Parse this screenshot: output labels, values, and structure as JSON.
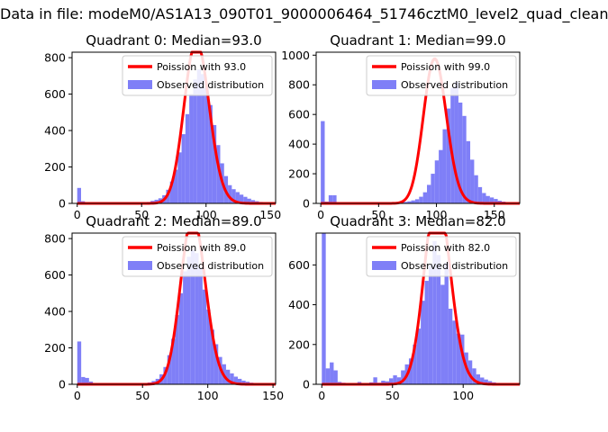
{
  "figure": {
    "suptitle": "Data in file: modeM0/AS1A13_090T01_9000006464_51746cztM0_level2_quad_clean"
  },
  "colors": {
    "observed": "#7f7ff7",
    "poisson": "#ff0000"
  },
  "chart_data": [
    {
      "type": "bar",
      "title": "Quadrant 0: Median=93.0",
      "median": 93.0,
      "xlim": [
        -4,
        154
      ],
      "ylim": [
        0,
        830
      ],
      "xticks": [
        0,
        50,
        100,
        150
      ],
      "yticks": [
        0,
        200,
        400,
        600,
        800
      ],
      "bin_width": 3,
      "bins_start": [
        0,
        3,
        6,
        9,
        12,
        15,
        18,
        21,
        24,
        27,
        30,
        33,
        36,
        39,
        42,
        45,
        48,
        51,
        54,
        57,
        60,
        63,
        66,
        69,
        72,
        75,
        78,
        81,
        84,
        87,
        90,
        93,
        96,
        99,
        102,
        105,
        108,
        111,
        114,
        117,
        120,
        123,
        126,
        129,
        132,
        135,
        138,
        141,
        144,
        147
      ],
      "counts": [
        85,
        12,
        5,
        4,
        3,
        3,
        3,
        3,
        3,
        3,
        3,
        3,
        3,
        3,
        3,
        3,
        4,
        5,
        8,
        14,
        20,
        28,
        45,
        75,
        120,
        185,
        280,
        380,
        490,
        600,
        680,
        735,
        710,
        640,
        540,
        430,
        320,
        220,
        150,
        100,
        78,
        62,
        48,
        36,
        26,
        18,
        12,
        8,
        5,
        3
      ],
      "legend": {
        "position": "upper right",
        "entries": [
          "Poission with 93.0",
          "Observed distribution"
        ]
      }
    },
    {
      "type": "bar",
      "title": "Quadrant 1: Median=99.0",
      "median": 99.0,
      "xlim": [
        -4,
        172
      ],
      "ylim": [
        0,
        1020
      ],
      "xticks": [
        0,
        50,
        100,
        150
      ],
      "yticks": [
        0,
        200,
        400,
        600,
        800,
        1000
      ],
      "bin_width": 3.4,
      "bins_start": [
        0,
        3.4,
        6.8,
        10.2,
        13.6,
        17,
        20.4,
        23.8,
        27.2,
        30.6,
        34,
        37.4,
        40.8,
        44.2,
        47.6,
        51,
        54.4,
        57.8,
        61.2,
        64.6,
        68,
        71.4,
        74.8,
        78.2,
        81.6,
        85,
        88.4,
        91.8,
        95.2,
        98.6,
        102,
        105.4,
        108.8,
        112.2,
        115.6,
        119,
        122.4,
        125.8,
        129.2,
        132.6,
        136,
        139.4,
        142.8,
        146.2,
        149.6,
        153,
        156.4,
        159.8,
        163.2,
        166.6
      ],
      "counts": [
        555,
        12,
        55,
        55,
        4,
        3,
        3,
        3,
        3,
        3,
        3,
        3,
        3,
        3,
        3,
        3,
        3,
        3,
        3,
        3,
        8,
        10,
        14,
        20,
        28,
        45,
        75,
        125,
        200,
        290,
        360,
        500,
        640,
        780,
        820,
        680,
        590,
        420,
        295,
        190,
        110,
        70,
        50,
        40,
        30,
        18,
        12,
        6,
        4,
        3
      ],
      "legend": {
        "position": "upper right",
        "entries": [
          "Poission with 99.0",
          "Observed distribution"
        ]
      }
    },
    {
      "type": "bar",
      "title": "Quadrant 2: Median=89.0",
      "median": 89.0,
      "xlim": [
        -4,
        152
      ],
      "ylim": [
        0,
        830
      ],
      "xticks": [
        0,
        50,
        100,
        150
      ],
      "yticks": [
        0,
        200,
        400,
        600,
        800
      ],
      "bin_width": 3,
      "bins_start": [
        0,
        3,
        6,
        9,
        12,
        15,
        18,
        21,
        24,
        27,
        30,
        33,
        36,
        39,
        42,
        45,
        48,
        51,
        54,
        57,
        60,
        63,
        66,
        69,
        72,
        75,
        78,
        81,
        84,
        87,
        90,
        93,
        96,
        99,
        102,
        105,
        108,
        111,
        114,
        117,
        120,
        123,
        126,
        129,
        132,
        135,
        138,
        141,
        144,
        147
      ],
      "counts": [
        235,
        40,
        35,
        15,
        4,
        3,
        3,
        3,
        3,
        3,
        3,
        3,
        3,
        3,
        3,
        3,
        4,
        6,
        10,
        18,
        30,
        55,
        95,
        160,
        250,
        380,
        500,
        620,
        700,
        740,
        720,
        640,
        520,
        410,
        300,
        220,
        150,
        110,
        80,
        60,
        42,
        30,
        20,
        14,
        9,
        6,
        4,
        3,
        2,
        2
      ],
      "legend": {
        "position": "upper right",
        "entries": [
          "Poission with 89.0",
          "Observed distribution"
        ]
      }
    },
    {
      "type": "bar",
      "title": "Quadrant 3: Median=82.0",
      "median": 82.0,
      "xlim": [
        -4,
        140
      ],
      "ylim": [
        0,
        760
      ],
      "xticks": [
        0,
        50,
        100
      ],
      "yticks": [
        0,
        200,
        400,
        600
      ],
      "bin_width": 2.8,
      "bins_start": [
        0,
        2.8,
        5.6,
        8.4,
        11.2,
        14,
        16.8,
        19.6,
        22.4,
        25.2,
        28,
        30.8,
        33.6,
        36.4,
        39.2,
        42,
        44.8,
        47.6,
        50.4,
        53.2,
        56,
        58.8,
        61.6,
        64.4,
        67.2,
        70,
        72.8,
        75.6,
        78.4,
        81.2,
        84,
        86.8,
        89.6,
        92.4,
        95.2,
        98,
        100.8,
        103.6,
        106.4,
        109.2,
        112,
        114.8,
        117.6,
        120.4,
        123.2,
        126,
        128.8,
        131.6,
        134.4,
        137.2
      ],
      "counts": [
        760,
        80,
        110,
        70,
        12,
        8,
        6,
        4,
        5,
        12,
        6,
        4,
        10,
        35,
        8,
        18,
        15,
        30,
        45,
        35,
        70,
        100,
        130,
        200,
        280,
        420,
        520,
        600,
        720,
        650,
        500,
        610,
        380,
        320,
        255,
        250,
        160,
        120,
        80,
        50,
        34,
        24,
        16,
        10,
        7,
        4,
        3,
        2,
        2,
        2
      ],
      "legend": {
        "position": "upper right",
        "entries": [
          "Poission with 82.0",
          "Observed distribution"
        ]
      }
    }
  ]
}
